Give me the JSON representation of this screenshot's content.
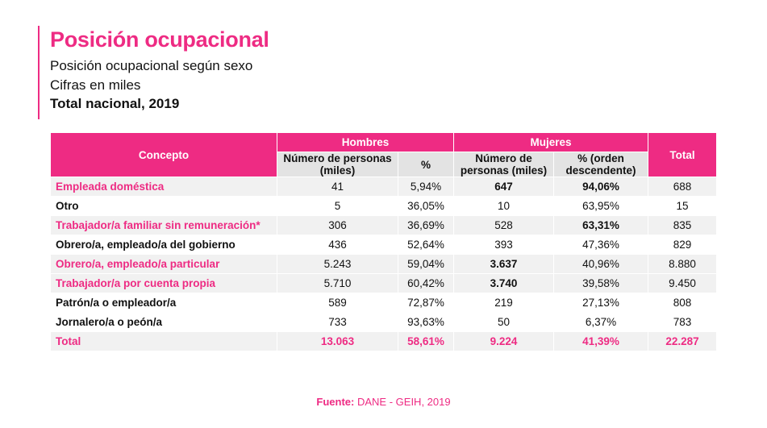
{
  "header": {
    "title": "Posición ocupacional",
    "subtitle1": "Posición ocupacional según sexo",
    "subtitle2": "Cifras en miles",
    "subtitle3": "Total nacional, 2019"
  },
  "colors": {
    "accent": "#ee2b83",
    "header_grey": "#e3e3e3",
    "row_grey": "#f1f1f1"
  },
  "table": {
    "col_concept": "Concepto",
    "group_men": "Hombres",
    "group_women": "Mujeres",
    "col_total": "Total",
    "sub_men_count": "Número de personas (miles)",
    "sub_men_pct": "%",
    "sub_women_count": "Número de personas (miles)",
    "sub_women_pct": "% (orden descendente)",
    "rows": [
      {
        "concept": "Empleada doméstica",
        "men": "41",
        "men_pct": "5,94%",
        "women": "647",
        "women_pct": "94,06%",
        "total": "688"
      },
      {
        "concept": "Otro",
        "men": "5",
        "men_pct": "36,05%",
        "women": "10",
        "women_pct": "63,95%",
        "total": "15"
      },
      {
        "concept": "Trabajador/a familiar sin remuneración*",
        "men": "306",
        "men_pct": "36,69%",
        "women": "528",
        "women_pct": "63,31%",
        "total": "835"
      },
      {
        "concept": "Obrero/a, empleado/a del gobierno",
        "men": "436",
        "men_pct": "52,64%",
        "women": "393",
        "women_pct": "47,36%",
        "total": "829"
      },
      {
        "concept": "Obrero/a, empleado/a particular",
        "men": "5.243",
        "men_pct": "59,04%",
        "women": "3.637",
        "women_pct": "40,96%",
        "total": "8.880"
      },
      {
        "concept": "Trabajador/a por cuenta propia",
        "men": "5.710",
        "men_pct": "60,42%",
        "women": "3.740",
        "women_pct": "39,58%",
        "total": "9.450"
      },
      {
        "concept": "Patrón/a o empleador/a",
        "men": "589",
        "men_pct": "72,87%",
        "women": "219",
        "women_pct": "27,13%",
        "total": "808"
      },
      {
        "concept": "Jornalero/a o peón/a",
        "men": "733",
        "men_pct": "93,63%",
        "women": "50",
        "women_pct": "6,37%",
        "total": "783"
      }
    ],
    "total_row": {
      "concept": "Total",
      "men": "13.063",
      "men_pct": "58,61%",
      "women": "9.224",
      "women_pct": "41,39%",
      "total": "22.287"
    }
  },
  "footer": {
    "source_label": "Fuente:",
    "source_text": "DANE - GEIH, 2019"
  }
}
